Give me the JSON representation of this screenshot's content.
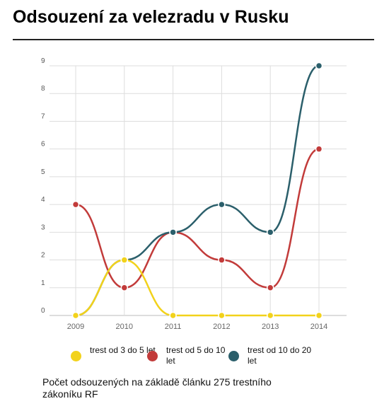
{
  "page": {
    "title": "Odsouzení za velezradu v Rusku",
    "caption": "Počet odsouzených na základě článku 275 trestního zákoníku RF"
  },
  "chart_data": {
    "type": "line",
    "title": "Odsouzení za velezradu v Rusku",
    "xlabel": "",
    "ylabel": "",
    "categories": [
      "2009",
      "2010",
      "2011",
      "2012",
      "2013",
      "2014"
    ],
    "ylim": [
      0,
      9
    ],
    "yticks": [
      "0",
      "1",
      "2",
      "3",
      "4",
      "5",
      "6",
      "7",
      "8",
      "9"
    ],
    "grid": true,
    "legend_position": "bottom",
    "series": [
      {
        "name": "trest od 3 do 5 let",
        "color": "#f2d21b",
        "values": [
          0,
          2,
          0,
          0,
          0,
          0
        ]
      },
      {
        "name": "trest od 5 do 10 let",
        "color": "#c23b3a",
        "values": [
          4,
          1,
          3,
          2,
          1,
          6
        ]
      },
      {
        "name": "trest od 10 do 20 let",
        "color": "#2b5f6b",
        "values": [
          0,
          2,
          3,
          4,
          3,
          9
        ]
      }
    ]
  }
}
